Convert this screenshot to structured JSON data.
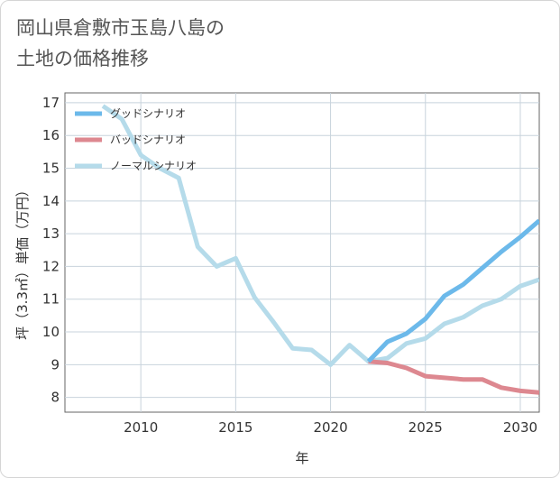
{
  "title_line1": "岡山県倉敷市玉島八島の",
  "title_line2": "土地の価格推移",
  "chart_data": {
    "type": "line",
    "xlabel": "年",
    "ylabel": "坪（3.3㎡）単価（万円）",
    "xlim": [
      2006,
      2031
    ],
    "ylim": [
      7.55,
      17.3
    ],
    "x_ticks": [
      2010,
      2015,
      2020,
      2025,
      2030
    ],
    "y_ticks": [
      8,
      9,
      10,
      11,
      12,
      13,
      14,
      15,
      16,
      17
    ],
    "grid": true,
    "legend_position": "top-left",
    "series": [
      {
        "name": "グッドシナリオ",
        "color": "#6cb9ea",
        "x": [
          2022,
          2023,
          2024,
          2025,
          2026,
          2027,
          2028,
          2029,
          2030,
          2031
        ],
        "y": [
          9.1,
          9.7,
          9.95,
          10.4,
          11.1,
          11.45,
          11.95,
          12.45,
          12.9,
          13.4
        ]
      },
      {
        "name": "バッドシナリオ",
        "color": "#dd8890",
        "x": [
          2022,
          2023,
          2024,
          2025,
          2026,
          2027,
          2028,
          2029,
          2030,
          2031
        ],
        "y": [
          9.1,
          9.05,
          8.9,
          8.65,
          8.6,
          8.55,
          8.55,
          8.3,
          8.2,
          8.15
        ]
      },
      {
        "name": "ノーマルシナリオ",
        "color": "#b5dbea",
        "x": [
          2008,
          2009,
          2010,
          2011,
          2012,
          2013,
          2014,
          2015,
          2016,
          2017,
          2018,
          2019,
          2020,
          2021,
          2022,
          2023,
          2024,
          2025,
          2026,
          2027,
          2028,
          2029,
          2030,
          2031
        ],
        "y": [
          16.9,
          16.5,
          15.4,
          15.0,
          14.7,
          12.6,
          12.0,
          12.25,
          11.05,
          10.3,
          9.5,
          9.45,
          9.0,
          9.6,
          9.1,
          9.2,
          9.65,
          9.8,
          10.25,
          10.45,
          10.8,
          11.0,
          11.4,
          11.6
        ]
      }
    ]
  }
}
